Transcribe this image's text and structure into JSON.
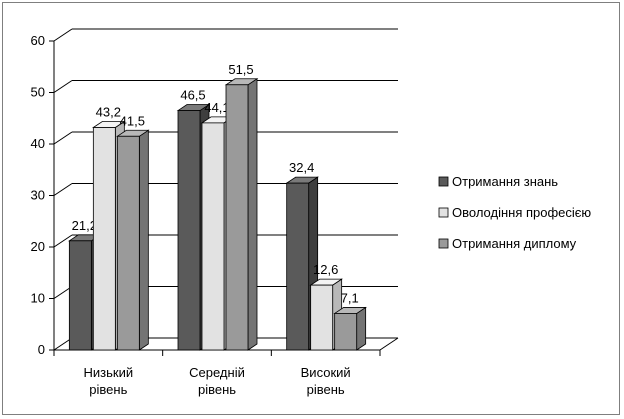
{
  "chart_data": {
    "type": "bar",
    "categories": [
      [
        "Низький",
        "рівень"
      ],
      [
        "Середній",
        "рівень"
      ],
      [
        "Високий",
        "рівень"
      ]
    ],
    "series": [
      {
        "name": "Отримання знань",
        "values": [
          21.2,
          46.5,
          32.4
        ],
        "color": "#5a5a5a",
        "top": "#7a7a7a",
        "side": "#3e3e3e"
      },
      {
        "name": "Оволодіння професією",
        "values": [
          43.2,
          44.1,
          12.6
        ],
        "color": "#e2e2e2",
        "top": "#f4f4f4",
        "side": "#b8b8b8"
      },
      {
        "name": "Отримання диплому",
        "values": [
          41.5,
          51.5,
          7.1
        ],
        "color": "#9a9a9a",
        "top": "#b8b8b8",
        "side": "#747474"
      }
    ],
    "data_labels": [
      [
        "21,2",
        "46,5",
        "32,4"
      ],
      [
        "43,2",
        "44,1",
        "12,6"
      ],
      [
        "41,5",
        "51,5",
        "7,1"
      ]
    ],
    "y_ticks": [
      "0",
      "10",
      "20",
      "30",
      "40",
      "50",
      "60"
    ],
    "ylim": [
      0,
      60
    ],
    "grid": true,
    "legend_position": "right"
  }
}
